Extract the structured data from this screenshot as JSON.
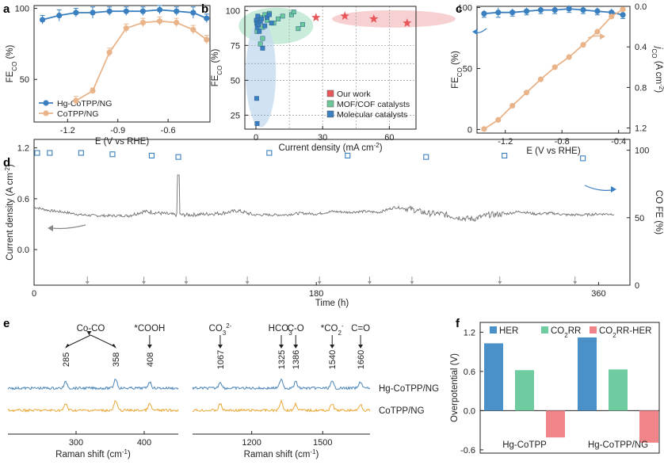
{
  "colors": {
    "blue": "#3a7fbf",
    "orange": "#eab48a",
    "red": "#e8575a",
    "green": "#6cc79a",
    "gray": "#707070",
    "bar_blue": "#4a91c9",
    "bar_green": "#6fcca0",
    "bar_red": "#f08488",
    "raman_blue": "#4d86b8",
    "raman_orange": "#e8a93a"
  },
  "panels": {
    "a": "a",
    "b": "b",
    "c": "c",
    "d": "d",
    "e": "e",
    "f": "f"
  },
  "chart_data": [
    {
      "id": "a",
      "type": "line",
      "xlabel": "E (V vs RHE)",
      "ylabel_main": "FE",
      "ylabel_sub": "CO",
      "ylabel_unit": " (%)",
      "xlim": [
        -1.4,
        -0.35
      ],
      "ylim": [
        20,
        102
      ],
      "xticks": [
        -1.2,
        -0.9,
        -0.6
      ],
      "xtick_labels": [
        "-1.2",
        "-0.9",
        "-0.6"
      ],
      "yticks": [
        50,
        100
      ],
      "ytick_labels": [
        "50",
        "100"
      ],
      "series": [
        {
          "name": "Hg-CoTPP/NG",
          "color": "#3a7fbf",
          "x": [
            -1.35,
            -1.25,
            -1.15,
            -1.05,
            -0.95,
            -0.85,
            -0.75,
            -0.65,
            -0.55,
            -0.45,
            -0.37
          ],
          "y": [
            92,
            95,
            97,
            97,
            98,
            98,
            98,
            99,
            98,
            97,
            93
          ],
          "err": [
            3,
            4,
            3,
            4,
            3,
            3,
            3,
            3,
            3,
            4,
            3
          ]
        },
        {
          "name": "CoTPP/NG",
          "color": "#eab48a",
          "x": [
            -1.15,
            -1.05,
            -0.95,
            -0.85,
            -0.75,
            -0.65,
            -0.55,
            -0.45,
            -0.37
          ],
          "y": [
            35,
            42,
            69,
            86,
            90,
            91,
            90,
            85,
            78
          ],
          "err": [
            3,
            2,
            3,
            3,
            3,
            3,
            3,
            3,
            3
          ]
        }
      ],
      "legend": "bottom-left"
    },
    {
      "id": "b",
      "type": "scatter",
      "xlabel": "Current density (mA cm",
      "xlabel_sup": "-2",
      "xlabel_end": ")",
      "ylabel_main": "FE",
      "ylabel_sub": "CO",
      "ylabel_unit": " (%)",
      "xlim": [
        -5,
        72
      ],
      "ylim": [
        15,
        103
      ],
      "xticks": [
        0,
        30,
        60
      ],
      "xtick_labels": [
        "0",
        "30",
        "60"
      ],
      "yticks": [
        25,
        50,
        75,
        100
      ],
      "ytick_labels": [
        "25",
        "50",
        "75",
        "100"
      ],
      "series": [
        {
          "name": "Our work",
          "color": "#e8575a",
          "marker": "star",
          "x": [
            27,
            40,
            53,
            68
          ],
          "y": [
            95,
            96,
            94,
            91
          ]
        },
        {
          "name": "MOF/COF catalysts",
          "color": "#6cc79a",
          "marker": "square",
          "x": [
            0.5,
            1,
            2,
            3,
            4,
            5,
            6,
            8,
            10,
            12,
            16,
            17,
            19,
            21,
            2,
            3
          ],
          "y": [
            85,
            92,
            95,
            88,
            97,
            93,
            98,
            91,
            94,
            96,
            97,
            99,
            87,
            90,
            76,
            80
          ]
        },
        {
          "name": "Molecular catalysts",
          "color": "#3a7fbf",
          "marker": "square",
          "x": [
            0.2,
            0.4,
            0.6,
            0.8,
            1,
            1.5,
            2,
            2.5,
            3,
            4,
            5,
            6,
            7,
            0.3,
            0.5
          ],
          "y": [
            93,
            91,
            88,
            96,
            90,
            85,
            92,
            94,
            73,
            89,
            95,
            97,
            91,
            37,
            19
          ]
        }
      ],
      "legend": "bottom-right"
    },
    {
      "id": "c",
      "type": "line",
      "xlabel": "E (V vs RHE)",
      "ylabel_main": "FE",
      "ylabel_sub": "CO",
      "ylabel_unit": " (%)",
      "y2label_main": "j",
      "y2label_sub": "CO",
      "y2label_unit": " (A cm",
      "y2label_sup": "-2",
      "y2label_end": ")",
      "xlim": [
        -1.4,
        -0.32
      ],
      "ylim": [
        -3,
        101
      ],
      "y2lim": [
        1.25,
        0
      ],
      "xticks": [
        -1.2,
        -0.8,
        -0.4
      ],
      "xtick_labels": [
        "-1.2",
        "-0.8",
        "-0.4"
      ],
      "yticks": [
        0,
        50,
        100
      ],
      "ytick_labels": [
        "0",
        "50",
        "100"
      ],
      "y2ticks": [
        0,
        0.4,
        0.8,
        1.2
      ],
      "y2tick_labels": [
        "0.0",
        "0.4",
        "0.8",
        "1.2"
      ],
      "series": [
        {
          "name": "FE_CO",
          "color": "#3a7fbf",
          "axis": "left",
          "x": [
            -1.35,
            -1.25,
            -1.15,
            -1.05,
            -0.95,
            -0.85,
            -0.75,
            -0.65,
            -0.55,
            -0.45,
            -0.37
          ],
          "y": [
            95,
            96,
            96,
            97,
            98,
            98,
            99,
            98,
            97,
            96,
            94
          ],
          "err": [
            3,
            4,
            3,
            3,
            3,
            3,
            3,
            3,
            3,
            3,
            3
          ]
        },
        {
          "name": "j_CO",
          "color": "#eab48a",
          "axis": "right",
          "x": [
            -1.35,
            -1.25,
            -1.15,
            -1.05,
            -0.95,
            -0.85,
            -0.75,
            -0.65,
            -0.55,
            -0.45,
            -0.37
          ],
          "y": [
            1.21,
            1.12,
            0.98,
            0.85,
            0.72,
            0.6,
            0.5,
            0.38,
            0.25,
            0.1,
            0.03
          ]
        }
      ]
    },
    {
      "id": "d",
      "type": "line",
      "xlabel": "Time (h)",
      "ylabel": "Current density (A cm",
      "ylabel_sup": "-2",
      "ylabel_end": ")",
      "y2label": "CO FE (%)",
      "xlim": [
        0,
        380
      ],
      "ylim": [
        -0.42,
        1.3
      ],
      "y2lim": [
        0,
        108
      ],
      "xticks": [
        0,
        180,
        360
      ],
      "xtick_labels": [
        "0",
        "180",
        "360"
      ],
      "yticks": [
        0,
        0.6,
        1.2
      ],
      "ytick_labels": [
        "0.0",
        "0.6",
        "1.2"
      ],
      "y2ticks": [
        0,
        50,
        100
      ],
      "y2tick_labels": [
        "0",
        "50",
        "100"
      ],
      "electrolyte_refresh_h": [
        34,
        70,
        97,
        136,
        182,
        214,
        241,
        297,
        345
      ],
      "series": [
        {
          "name": "Current density",
          "color": "#707070",
          "axis": "left",
          "x": [
            0,
            10,
            20,
            30,
            40,
            50,
            60,
            70,
            80,
            90,
            100,
            110,
            120,
            130,
            140,
            150,
            160,
            170,
            180,
            190,
            200,
            210,
            220,
            230,
            240,
            250,
            260,
            270,
            280,
            290,
            300,
            310,
            320,
            330,
            340,
            350,
            360,
            370
          ],
          "y": [
            0.5,
            0.46,
            0.44,
            0.41,
            0.4,
            0.4,
            0.4,
            0.45,
            0.43,
            0.41,
            0.41,
            0.42,
            0.43,
            0.46,
            0.41,
            0.41,
            0.41,
            0.43,
            0.42,
            0.45,
            0.44,
            0.45,
            0.44,
            0.5,
            0.48,
            0.43,
            0.42,
            0.38,
            0.36,
            0.41,
            0.42,
            0.45,
            0.42,
            0.43,
            0.41,
            0.41,
            0.42,
            0.42
          ]
        },
        {
          "name": "CO FE",
          "color": "#3a7fbf",
          "axis": "right",
          "x": [
            2,
            10,
            30,
            50,
            75,
            92,
            150,
            200,
            250,
            300,
            350
          ],
          "y": [
            98,
            98,
            98,
            97,
            96,
            95,
            98,
            96,
            95,
            96,
            94
          ]
        }
      ]
    },
    {
      "id": "e",
      "type": "line",
      "xlabel": "Raman shift (cm",
      "xlabel_sup": "-1",
      "xlabel_end": ")",
      "left_xlim": [
        200,
        450
      ],
      "right_xlim": [
        950,
        1700
      ],
      "left_xticks": [
        300,
        400
      ],
      "left_xtick_labels": [
        "300",
        "400"
      ],
      "right_xticks": [
        1200,
        1500
      ],
      "right_xtick_labels": [
        "1200",
        "1500"
      ],
      "group_label_coco": "Co-CO",
      "annotations": [
        {
          "x": 285,
          "label": "285"
        },
        {
          "x": 358,
          "label": "358"
        },
        {
          "x": 408,
          "label": "408",
          "group": "*COOH"
        },
        {
          "x": 1067,
          "label": "1067",
          "group": "CO3 2-"
        },
        {
          "x": 1325,
          "label": "1325",
          "group": "HCO3 -"
        },
        {
          "x": 1386,
          "label": "1386",
          "group": "C-O"
        },
        {
          "x": 1540,
          "label": "1540",
          "group": "*CO2 -"
        },
        {
          "x": 1660,
          "label": "1660",
          "group": "C=O"
        }
      ],
      "series": [
        {
          "name": "Hg-CoTPP/NG",
          "color": "#4d86b8"
        },
        {
          "name": "CoTPP/NG",
          "color": "#e8a93a"
        }
      ]
    },
    {
      "id": "f",
      "type": "bar",
      "ylabel": "Overpotential (V)",
      "ylim": [
        -0.65,
        1.35
      ],
      "yticks": [
        -0.6,
        0,
        0.6,
        1.2
      ],
      "ytick_labels": [
        "-0.6",
        "0.0",
        "0.6",
        "1.2"
      ],
      "categories": [
        "Hg-CoTPP",
        "Hg-CoTPP/NG"
      ],
      "series": [
        {
          "name": "HER",
          "legend_main": "HER",
          "legend_sub": "",
          "legend_end": "",
          "color": "#4a91c9",
          "values": [
            1.03,
            1.12
          ]
        },
        {
          "name": "CO2RR",
          "legend_main": "CO",
          "legend_sub": "2",
          "legend_end": "RR",
          "color": "#6fcca0",
          "values": [
            0.62,
            0.63
          ]
        },
        {
          "name": "CO2RR-HER",
          "legend_main": "CO",
          "legend_sub": "2",
          "legend_end": "RR-HER",
          "color": "#f08488",
          "values": [
            -0.41,
            -0.49
          ]
        }
      ],
      "legend": "top"
    }
  ]
}
